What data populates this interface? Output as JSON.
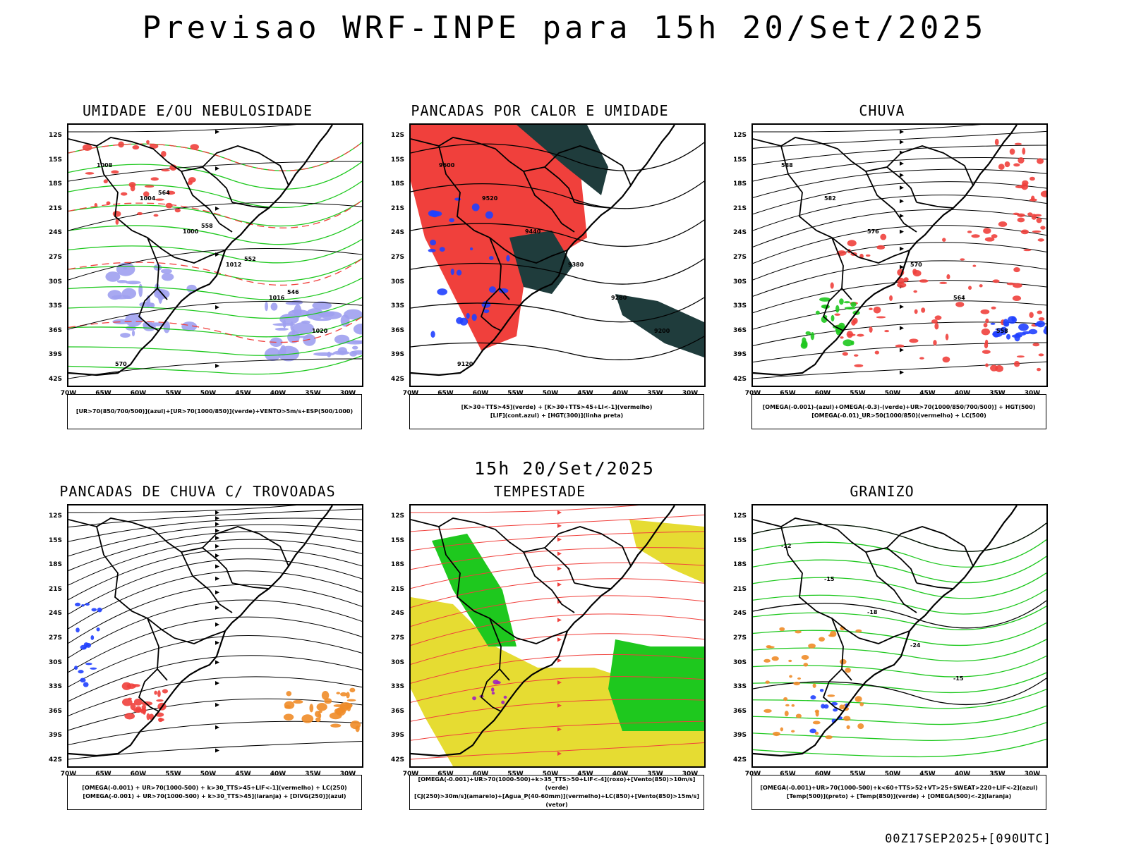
{
  "title": "Previsao WRF-INPE  para 15h 20/Set/2025",
  "subtitle": "15h 20/Set/2025",
  "footer": "00Z17SEP2025+[090UTC]",
  "axes": {
    "lat_labels": [
      "12S",
      "15S",
      "18S",
      "21S",
      "24S",
      "27S",
      "30S",
      "33S",
      "36S",
      "39S",
      "42S"
    ],
    "lon_labels": [
      "70W",
      "65W",
      "60W",
      "55W",
      "50W",
      "45W",
      "40W",
      "35W",
      "30W"
    ]
  },
  "panels": [
    {
      "title": "UMIDADE E/OU NEBULOSIDADE",
      "legend": [
        "[UR>70(850/700/500)](azul)+[UR>70(1000/850)](verde)+VENTO>5m/s+ESP(500/1000)"
      ],
      "contour_labels": [
        "1008",
        "1004",
        "1000",
        "1012",
        "1016",
        "1020",
        "570",
        "564",
        "558",
        "552",
        "546"
      ]
    },
    {
      "title": "PANCADAS POR CALOR E UMIDADE",
      "legend": [
        "[K>30+TTS>45](verde) + [K>30+TTS>45+LI<-1](vermelho)",
        "[LIF](cont.azul) + [HGT(300)](linha preta)"
      ],
      "contour_labels": [
        "9600",
        "9520",
        "9440",
        "9380",
        "9280",
        "9200",
        "9120"
      ]
    },
    {
      "title": "CHUVA",
      "legend": [
        "[OMEGA(-0.001)-(azul)+OMEGA(-0.3)-(verde)+UR>70(1000/850/700/500)] + HGT(500)",
        "[OMEGA(-0.01)_UR>50(1000/850)(vermelho) + LC(500)"
      ],
      "contour_labels": [
        "588",
        "582",
        "576",
        "570",
        "564",
        "558"
      ]
    },
    {
      "title": "PANCADAS DE CHUVA C/ TROVOADAS",
      "legend": [
        "[OMEGA(-0.001) + UR>70(1000-500) + k>30_TTS>45+LIF<-1](vermelho) + LC(250)",
        "[OMEGA(-0.001) + UR>70(1000-500) + k>30_TTS>45](laranja) + [DIVG(250)](azul)"
      ],
      "contour_labels": []
    },
    {
      "title": "TEMPESTADE",
      "legend": [
        "[OMEGA(-0.001)+UR>70(1000-500)+k>35_TTS>50+LIF<-4](roxo)+[Vento(850)>10m/s](verde)",
        "[CJ(250)>30m/s](amarelo)+[Agua_P(40-60mm)](vermelho)+LC(850)+[Vento(850)>15m/s](vetor)"
      ],
      "contour_labels": []
    },
    {
      "title": "GRANIZO",
      "legend": [
        "[OMEGA(-0.001)+UR>70(1000-500)+k<60+TTS>52+VT>25+SWEAT>220+LIF<-2](azul)",
        "[Temp(500)](preto) + [Temp(850)](verde) + [OMEGA(500)<-2](laranja)"
      ],
      "contour_labels": [
        "-12",
        "-15",
        "-18",
        "-24",
        "-15"
      ]
    }
  ],
  "colors": {
    "red": "#f0403c",
    "green": "#1ec81e",
    "blue": "#2040ff",
    "lavender": "#9ea0f0",
    "dark_teal": "#1f3c3c",
    "yellow": "#e6dc32",
    "orange": "#f08c28",
    "purple": "#a020c0"
  }
}
